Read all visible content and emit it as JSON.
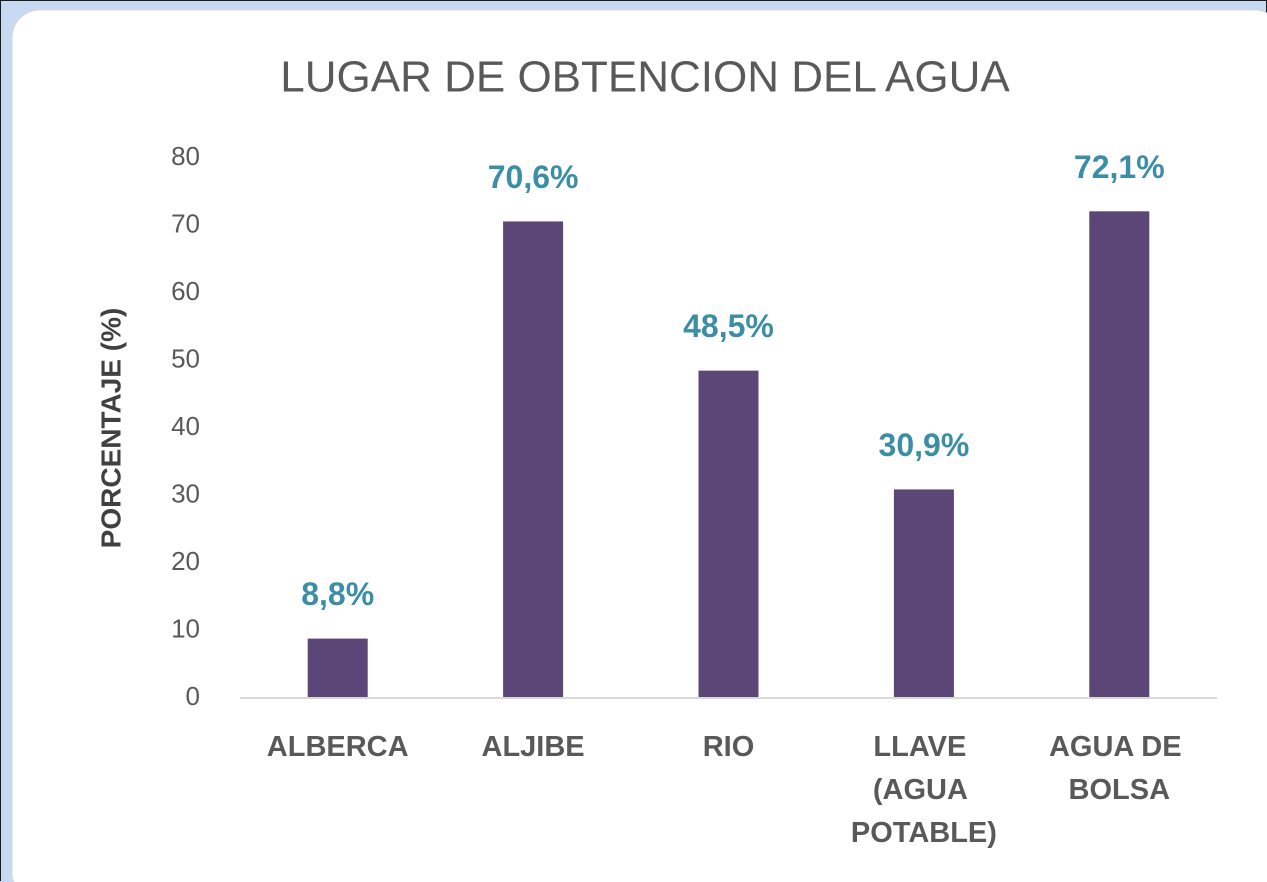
{
  "chart_data": {
    "type": "bar",
    "title": "LUGAR DE OBTENCION DEL AGUA",
    "y_label": "PORCENTAJE  (%)",
    "categories": [
      "ALBERCA",
      "ALJIBE",
      "RIO",
      "LLAVE (AGUA POTABLE)",
      "AGUA DE BOLSA"
    ],
    "values": [
      8.8,
      70.6,
      48.5,
      30.9,
      72.1
    ],
    "value_labels": [
      "8,8%",
      "70,6%",
      "48,5%",
      "30,9%",
      "72,1%"
    ],
    "color": "#5c4577",
    "label_color": "#3b8ea5",
    "ylim": [
      0,
      80
    ],
    "yticks": [
      0,
      10,
      20,
      30,
      40,
      50,
      60,
      70,
      80
    ],
    "grid": false
  }
}
